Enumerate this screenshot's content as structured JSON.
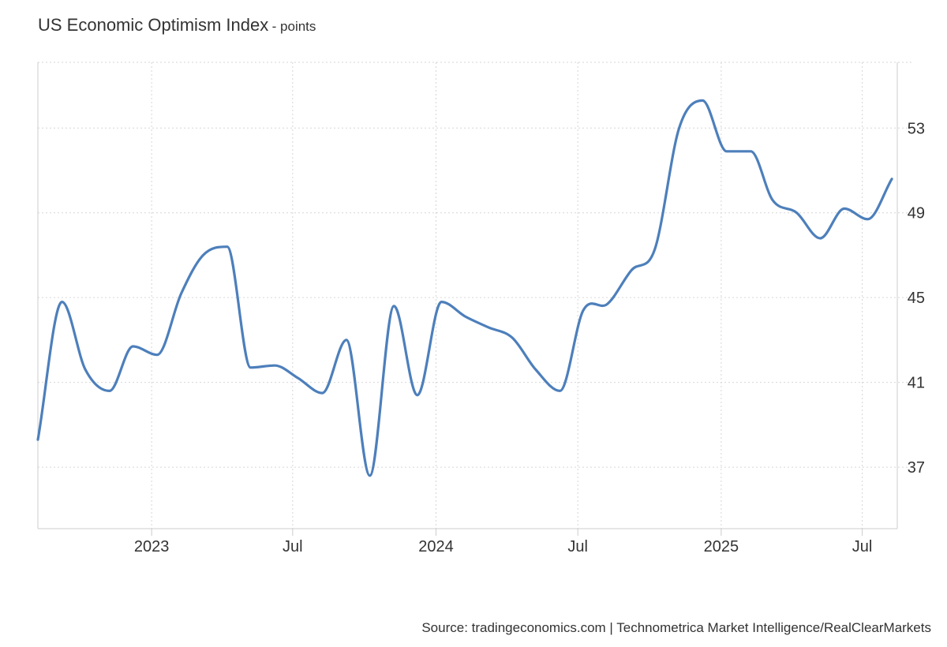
{
  "header": {
    "title": "US Economic Optimism Index",
    "unit": "- points"
  },
  "source": "Source: tradingeconomics.com | Technometrica Market Intelligence/RealClearMarkets",
  "chart_data": {
    "type": "line",
    "title": "US Economic Optimism Index",
    "ylabel": "",
    "xlabel": "",
    "ylim": [
      34.1,
      56.1
    ],
    "xlim": [
      "2022-08-08",
      "2025-08-15"
    ],
    "y_ticks": [
      {
        "value": 37,
        "label": "37"
      },
      {
        "value": 41,
        "label": "41"
      },
      {
        "value": 45,
        "label": "45"
      },
      {
        "value": 49,
        "label": "49"
      },
      {
        "value": 53,
        "label": "53"
      }
    ],
    "y_gridlines_only": [
      56.1
    ],
    "x_ticks": [
      {
        "date": "2023-01-01",
        "label": "2023"
      },
      {
        "date": "2023-07-01",
        "label": "Jul"
      },
      {
        "date": "2024-01-01",
        "label": "2024"
      },
      {
        "date": "2024-07-01",
        "label": "Jul"
      },
      {
        "date": "2025-01-01",
        "label": "2025"
      },
      {
        "date": "2025-07-01",
        "label": "Jul"
      }
    ],
    "grid": true,
    "y_axis_position": "right",
    "line_color": "#4d7fbb",
    "series": [
      {
        "x": [
          "2022-08-08",
          "2022-09-08",
          "2022-10-08",
          "2022-11-08",
          "2022-12-08",
          "2023-01-08",
          "2023-02-08",
          "2023-03-08",
          "2023-04-08",
          "2023-05-08",
          "2023-06-08",
          "2023-07-08",
          "2023-08-08",
          "2023-09-08",
          "2023-10-08",
          "2023-11-08",
          "2023-12-08",
          "2024-01-08",
          "2024-02-08",
          "2024-03-08",
          "2024-04-08",
          "2024-05-08",
          "2024-06-08",
          "2024-07-08",
          "2024-08-08",
          "2024-09-08",
          "2024-10-08",
          "2024-11-08",
          "2024-12-08",
          "2025-01-08",
          "2025-02-08",
          "2025-03-08",
          "2025-04-08",
          "2025-05-08",
          "2025-06-08",
          "2025-07-08",
          "2025-08-08"
        ],
        "values": [
          38.3,
          44.8,
          41.6,
          40.6,
          42.7,
          42.3,
          45.2,
          47.0,
          47.4,
          41.7,
          41.8,
          41.2,
          40.5,
          43.0,
          36.6,
          44.6,
          40.4,
          44.8,
          44.1,
          43.6,
          43.1,
          41.6,
          40.6,
          44.4,
          44.7,
          46.3,
          47.3,
          53.0,
          54.3,
          51.9,
          51.9,
          49.6,
          49.0,
          47.8,
          49.2,
          48.7,
          50.6
        ]
      }
    ]
  }
}
